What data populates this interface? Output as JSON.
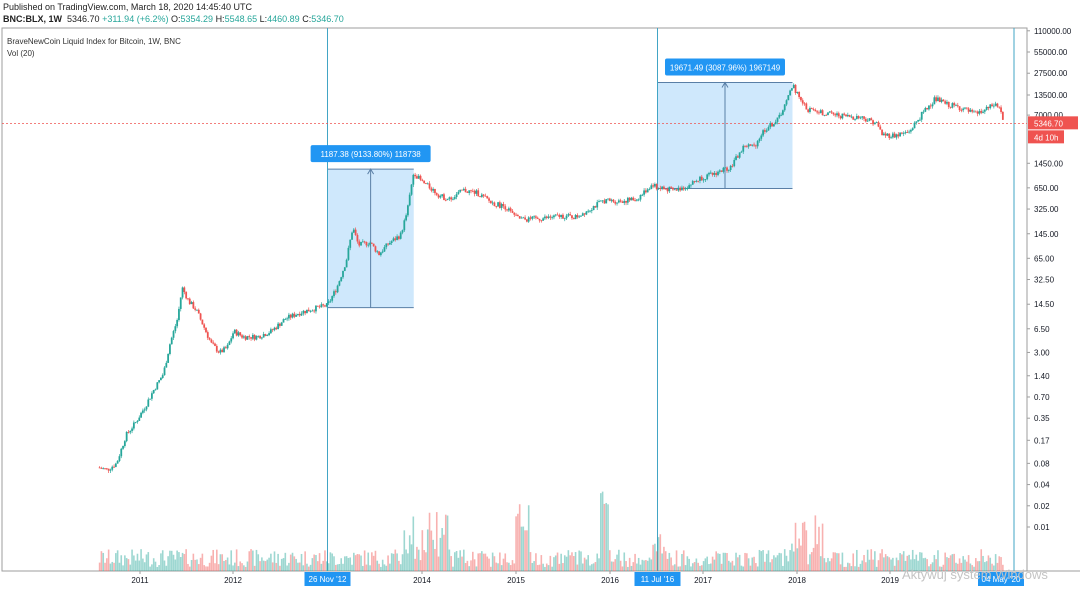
{
  "header": {
    "published": "Published on TradingView.com, March 18, 2020 14:45:40 UTC",
    "symbol": "BNC:BLX, 1W",
    "last": "5346.70",
    "change": "+311.94 (+6.2%)",
    "open_label": "O:",
    "open": "5354.29",
    "high_label": "H:",
    "high": "5548.65",
    "low_label": "L:",
    "low": "4460.89",
    "close_label": "C:",
    "close": "5346.70"
  },
  "legend": {
    "title": "BraveNewCoin Liquid Index for Bitcoin, 1W, BNC",
    "volume": "Vol (20)"
  },
  "watermark": "Aktywuj system Windows",
  "chart_data": {
    "type": "candlestick",
    "y_scale": "log",
    "y_ticks": [
      "110000.00",
      "55000.00",
      "27500.00",
      "13500.00",
      "7000.00",
      "1450.00",
      "650.00",
      "325.00",
      "145.00",
      "65.00",
      "32.50",
      "14.50",
      "6.50",
      "3.00",
      "1.40",
      "0.70",
      "0.35",
      "0.17",
      "0.08",
      "0.04",
      "0.02",
      "0.01"
    ],
    "x_ticks": [
      "2011",
      "2012",
      "2014",
      "2015",
      "2016",
      "2017",
      "2018",
      "2019"
    ],
    "last_price_label": "5346.70",
    "countdown_label": "4d 10h",
    "colors": {
      "up": "#26a69a",
      "down": "#ef5350",
      "range": "#2196f3",
      "grid": "#e8e8e8"
    },
    "price_path": [
      {
        "x": 2010.55,
        "y": 0.07
      },
      {
        "x": 2010.65,
        "y": 0.065
      },
      {
        "x": 2010.75,
        "y": 0.08
      },
      {
        "x": 2010.85,
        "y": 0.2
      },
      {
        "x": 2010.95,
        "y": 0.3
      },
      {
        "x": 2011.05,
        "y": 0.5
      },
      {
        "x": 2011.15,
        "y": 0.9
      },
      {
        "x": 2011.25,
        "y": 1.5
      },
      {
        "x": 2011.32,
        "y": 4
      },
      {
        "x": 2011.4,
        "y": 9
      },
      {
        "x": 2011.45,
        "y": 25
      },
      {
        "x": 2011.52,
        "y": 16
      },
      {
        "x": 2011.6,
        "y": 12
      },
      {
        "x": 2011.68,
        "y": 7
      },
      {
        "x": 2011.76,
        "y": 4
      },
      {
        "x": 2011.85,
        "y": 3
      },
      {
        "x": 2011.93,
        "y": 3.5
      },
      {
        "x": 2012.0,
        "y": 6
      },
      {
        "x": 2012.1,
        "y": 5
      },
      {
        "x": 2012.25,
        "y": 5
      },
      {
        "x": 2012.4,
        "y": 6
      },
      {
        "x": 2012.55,
        "y": 9
      },
      {
        "x": 2012.7,
        "y": 11
      },
      {
        "x": 2012.9,
        "y": 13
      },
      {
        "x": 2013.0,
        "y": 14
      },
      {
        "x": 2013.1,
        "y": 25
      },
      {
        "x": 2013.2,
        "y": 60
      },
      {
        "x": 2013.27,
        "y": 180
      },
      {
        "x": 2013.33,
        "y": 100
      },
      {
        "x": 2013.45,
        "y": 110
      },
      {
        "x": 2013.55,
        "y": 75
      },
      {
        "x": 2013.65,
        "y": 105
      },
      {
        "x": 2013.78,
        "y": 140
      },
      {
        "x": 2013.85,
        "y": 300
      },
      {
        "x": 2013.92,
        "y": 1100
      },
      {
        "x": 2014.0,
        "y": 800
      },
      {
        "x": 2014.1,
        "y": 650
      },
      {
        "x": 2014.2,
        "y": 500
      },
      {
        "x": 2014.3,
        "y": 450
      },
      {
        "x": 2014.45,
        "y": 600
      },
      {
        "x": 2014.6,
        "y": 550
      },
      {
        "x": 2014.75,
        "y": 400
      },
      {
        "x": 2014.9,
        "y": 350
      },
      {
        "x": 2015.0,
        "y": 250
      },
      {
        "x": 2015.1,
        "y": 230
      },
      {
        "x": 2015.3,
        "y": 240
      },
      {
        "x": 2015.5,
        "y": 260
      },
      {
        "x": 2015.65,
        "y": 250
      },
      {
        "x": 2015.8,
        "y": 330
      },
      {
        "x": 2015.95,
        "y": 430
      },
      {
        "x": 2016.1,
        "y": 420
      },
      {
        "x": 2016.3,
        "y": 450
      },
      {
        "x": 2016.45,
        "y": 700
      },
      {
        "x": 2016.55,
        "y": 650
      },
      {
        "x": 2016.7,
        "y": 600
      },
      {
        "x": 2016.85,
        "y": 700
      },
      {
        "x": 2016.98,
        "y": 900
      },
      {
        "x": 2017.1,
        "y": 1000
      },
      {
        "x": 2017.3,
        "y": 1300
      },
      {
        "x": 2017.45,
        "y": 2600
      },
      {
        "x": 2017.55,
        "y": 2500
      },
      {
        "x": 2017.65,
        "y": 4200
      },
      {
        "x": 2017.8,
        "y": 6000
      },
      {
        "x": 2017.9,
        "y": 11000
      },
      {
        "x": 2017.96,
        "y": 19000
      },
      {
        "x": 2018.05,
        "y": 11000
      },
      {
        "x": 2018.12,
        "y": 8500
      },
      {
        "x": 2018.3,
        "y": 7500
      },
      {
        "x": 2018.5,
        "y": 6800
      },
      {
        "x": 2018.7,
        "y": 6500
      },
      {
        "x": 2018.85,
        "y": 5500
      },
      {
        "x": 2018.92,
        "y": 3700
      },
      {
        "x": 2019.05,
        "y": 3600
      },
      {
        "x": 2019.2,
        "y": 4000
      },
      {
        "x": 2019.35,
        "y": 7500
      },
      {
        "x": 2019.48,
        "y": 12000
      },
      {
        "x": 2019.6,
        "y": 10000
      },
      {
        "x": 2019.75,
        "y": 9000
      },
      {
        "x": 2019.9,
        "y": 7200
      },
      {
        "x": 2020.0,
        "y": 8000
      },
      {
        "x": 2020.12,
        "y": 10000
      },
      {
        "x": 2020.18,
        "y": 8500
      },
      {
        "x": 2020.21,
        "y": 5346.7
      }
    ],
    "ranges": [
      {
        "label": "1187.38 (9133.80%) 118738",
        "x_start": 2013.0,
        "x_end": 2013.92,
        "y_low": 13,
        "y_high": 1200,
        "date_label": "26 Nov '12"
      },
      {
        "label": "19671.49 (3087.96%) 1967149",
        "x_start": 2016.52,
        "x_end": 2017.96,
        "y_low": 637,
        "y_high": 20300,
        "date_label": "11 Jul '16"
      }
    ],
    "end_date_label": "04 May '20"
  }
}
